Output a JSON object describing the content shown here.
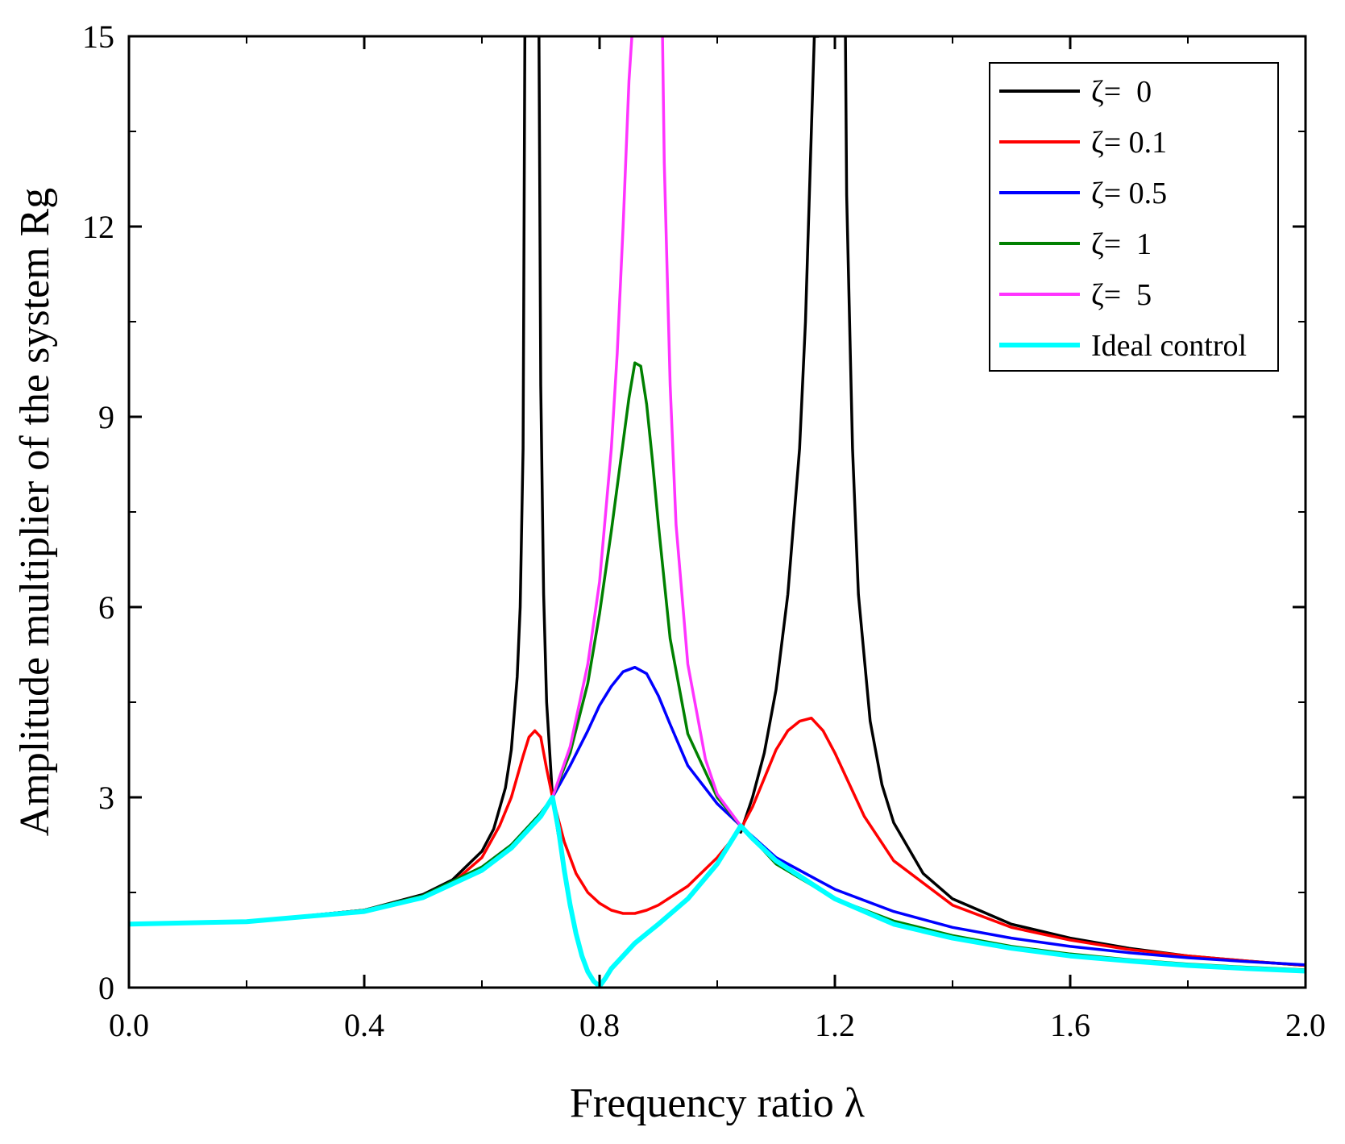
{
  "chart_data": {
    "type": "line",
    "title": "",
    "xlabel": "Frequency ratio λ",
    "ylabel": "Amplitude multiplier of the system Rg",
    "xlim": [
      0.0,
      2.0
    ],
    "ylim": [
      0,
      15
    ],
    "xticks": [
      0.0,
      0.4,
      0.8,
      1.2,
      1.6,
      2.0
    ],
    "xtick_labels": [
      "0.0",
      "0.4",
      "0.8",
      "1.2",
      "1.6",
      "2.0"
    ],
    "yticks": [
      0,
      3,
      6,
      9,
      12,
      15
    ],
    "ytick_labels": [
      "0",
      "3",
      "6",
      "9",
      "12",
      "15"
    ],
    "grid": false,
    "legend_position": "top-right",
    "series": [
      {
        "name": "ζ=  0",
        "color": "#000000",
        "segments": [
          {
            "x": [
              0.0,
              0.2,
              0.4,
              0.5,
              0.55,
              0.6,
              0.62,
              0.64,
              0.65,
              0.66,
              0.665,
              0.67,
              0.673
            ],
            "y": [
              1.0,
              1.04,
              1.22,
              1.47,
              1.7,
              2.15,
              2.5,
              3.15,
              3.75,
              4.9,
              6.0,
              8.5,
              15
            ]
          },
          {
            "x": [
              0.697,
              0.7,
              0.705,
              0.71,
              0.72,
              0.73
            ],
            "y": [
              15,
              9.5,
              6.2,
              4.5,
              3.0,
              2.4
            ]
          },
          {
            "x": [
              1.04,
              1.06,
              1.08,
              1.1,
              1.12,
              1.14,
              1.15,
              1.16,
              1.165,
              1.17,
              1.172
            ],
            "y": [
              2.45,
              3.0,
              3.7,
              4.7,
              6.2,
              8.5,
              10.5,
              13.5,
              15.0,
              15.0,
              15
            ]
          },
          {
            "x": [
              1.218,
              1.22,
              1.23,
              1.24,
              1.26,
              1.28,
              1.3,
              1.35,
              1.4,
              1.5,
              1.6,
              1.7,
              1.8,
              1.9,
              2.0
            ],
            "y": [
              15,
              12.5,
              8.5,
              6.2,
              4.2,
              3.2,
              2.6,
              1.8,
              1.4,
              1.0,
              0.78,
              0.62,
              0.5,
              0.42,
              0.35
            ]
          }
        ]
      },
      {
        "name": "ζ= 0.1",
        "color": "#ff0000",
        "segments": [
          {
            "x": [
              0.0,
              0.2,
              0.4,
              0.5,
              0.55,
              0.6,
              0.63,
              0.65,
              0.67,
              0.68,
              0.69,
              0.7,
              0.71,
              0.72,
              0.74,
              0.76,
              0.78,
              0.8,
              0.82,
              0.84,
              0.86,
              0.88,
              0.9,
              0.95,
              1.0,
              1.04,
              1.06,
              1.08,
              1.1,
              1.12,
              1.14,
              1.16,
              1.18,
              1.2,
              1.22,
              1.25,
              1.3,
              1.4,
              1.5,
              1.6,
              1.7,
              1.8,
              1.9,
              2.0
            ],
            "y": [
              1.0,
              1.04,
              1.22,
              1.45,
              1.65,
              2.05,
              2.55,
              3.0,
              3.65,
              3.95,
              4.05,
              3.95,
              3.45,
              3.0,
              2.3,
              1.8,
              1.5,
              1.33,
              1.22,
              1.17,
              1.17,
              1.22,
              1.3,
              1.6,
              2.05,
              2.5,
              2.85,
              3.3,
              3.75,
              4.05,
              4.2,
              4.25,
              4.05,
              3.7,
              3.3,
              2.7,
              2.0,
              1.3,
              0.95,
              0.75,
              0.6,
              0.5,
              0.42,
              0.35
            ]
          }
        ]
      },
      {
        "name": "ζ= 0.5",
        "color": "#0000ff",
        "segments": [
          {
            "x": [
              0.0,
              0.2,
              0.4,
              0.5,
              0.6,
              0.65,
              0.7,
              0.72,
              0.75,
              0.78,
              0.8,
              0.82,
              0.84,
              0.86,
              0.88,
              0.9,
              0.92,
              0.95,
              1.0,
              1.04,
              1.1,
              1.2,
              1.3,
              1.4,
              1.5,
              1.6,
              1.7,
              1.8,
              1.9,
              2.0
            ],
            "y": [
              1.0,
              1.04,
              1.22,
              1.45,
              1.9,
              2.25,
              2.75,
              3.0,
              3.5,
              4.05,
              4.45,
              4.75,
              4.98,
              5.05,
              4.95,
              4.6,
              4.15,
              3.5,
              2.9,
              2.55,
              2.05,
              1.55,
              1.2,
              0.95,
              0.78,
              0.65,
              0.55,
              0.47,
              0.41,
              0.36
            ]
          }
        ]
      },
      {
        "name": "ζ=  1",
        "color": "#008000",
        "segments": [
          {
            "x": [
              0.0,
              0.2,
              0.4,
              0.5,
              0.6,
              0.65,
              0.7,
              0.72,
              0.75,
              0.78,
              0.8,
              0.82,
              0.84,
              0.85,
              0.86,
              0.87,
              0.88,
              0.89,
              0.9,
              0.92,
              0.95,
              1.0,
              1.04,
              1.1,
              1.2,
              1.3,
              1.4,
              1.5,
              1.6,
              1.7,
              1.8,
              1.9,
              2.0
            ],
            "y": [
              1.0,
              1.04,
              1.22,
              1.45,
              1.9,
              2.25,
              2.75,
              3.0,
              3.7,
              4.8,
              5.9,
              7.2,
              8.6,
              9.3,
              9.85,
              9.8,
              9.2,
              8.3,
              7.3,
              5.5,
              4.0,
              3.0,
              2.55,
              1.95,
              1.4,
              1.05,
              0.82,
              0.65,
              0.53,
              0.44,
              0.37,
              0.32,
              0.28
            ]
          }
        ]
      },
      {
        "name": "ζ=  5",
        "color": "#ff33ff",
        "segments": [
          {
            "x": [
              0.72,
              0.75,
              0.78,
              0.8,
              0.82,
              0.83,
              0.84,
              0.85,
              0.855
            ],
            "y": [
              3.0,
              3.8,
              5.1,
              6.4,
              8.5,
              10.0,
              12.0,
              14.3,
              15
            ]
          },
          {
            "x": [
              0.907,
              0.91,
              0.92,
              0.93,
              0.95,
              0.98,
              1.0,
              1.04
            ],
            "y": [
              15,
              13.0,
              9.5,
              7.3,
              5.1,
              3.6,
              3.05,
              2.55
            ]
          }
        ]
      },
      {
        "name": "Ideal control",
        "color": "#00ffff",
        "segments": [
          {
            "x": [
              0.0,
              0.2,
              0.4,
              0.5,
              0.6,
              0.65,
              0.7,
              0.72,
              0.73,
              0.74,
              0.75,
              0.76,
              0.77,
              0.78,
              0.79,
              0.8,
              0.81,
              0.82,
              0.84,
              0.86,
              0.88,
              0.9,
              0.95,
              1.0,
              1.04,
              1.06,
              1.1,
              1.2,
              1.3,
              1.4,
              1.5,
              1.6,
              1.7,
              1.8,
              1.9,
              2.0
            ],
            "y": [
              1.0,
              1.04,
              1.2,
              1.42,
              1.85,
              2.2,
              2.7,
              3.0,
              2.5,
              1.85,
              1.3,
              0.85,
              0.5,
              0.25,
              0.1,
              0.02,
              0.15,
              0.3,
              0.5,
              0.7,
              0.85,
              1.0,
              1.4,
              1.95,
              2.55,
              2.35,
              2.0,
              1.4,
              1.0,
              0.78,
              0.62,
              0.5,
              0.42,
              0.35,
              0.3,
              0.26
            ]
          }
        ]
      }
    ]
  }
}
